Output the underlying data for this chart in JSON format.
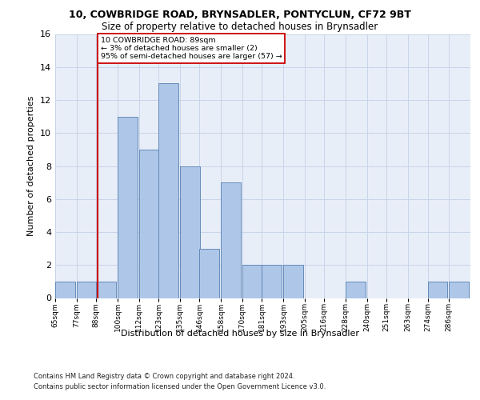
{
  "title1": "10, COWBRIDGE ROAD, BRYNSADLER, PONTYCLUN, CF72 9BT",
  "title2": "Size of property relative to detached houses in Brynsadler",
  "xlabel": "Distribution of detached houses by size in Brynsadler",
  "ylabel": "Number of detached properties",
  "footer1": "Contains HM Land Registry data © Crown copyright and database right 2024.",
  "footer2": "Contains public sector information licensed under the Open Government Licence v3.0.",
  "annotation_line1": "10 COWBRIDGE ROAD: 89sqm",
  "annotation_line2": "← 3% of detached houses are smaller (2)",
  "annotation_line3": "95% of semi-detached houses are larger (57) →",
  "property_size": 89,
  "bar_left_edges": [
    65,
    77,
    88,
    100,
    112,
    123,
    135,
    146,
    158,
    170,
    181,
    193,
    205,
    216,
    228,
    240,
    251,
    263,
    274,
    286
  ],
  "bar_heights": [
    1,
    1,
    1,
    11,
    9,
    13,
    8,
    3,
    7,
    2,
    2,
    2,
    0,
    0,
    1,
    0,
    0,
    0,
    1,
    1
  ],
  "bar_color": "#aec6e8",
  "bar_edge_color": "#5580b0",
  "highlight_line_color": "#cc0000",
  "annotation_box_color": "#cc0000",
  "ylim": [
    0,
    16
  ],
  "yticks": [
    0,
    2,
    4,
    6,
    8,
    10,
    12,
    14,
    16
  ],
  "grid_color": "#c8d4e8",
  "background_color": "#e8eef8",
  "xmin": 65,
  "xmax": 298,
  "bin_width": 12
}
